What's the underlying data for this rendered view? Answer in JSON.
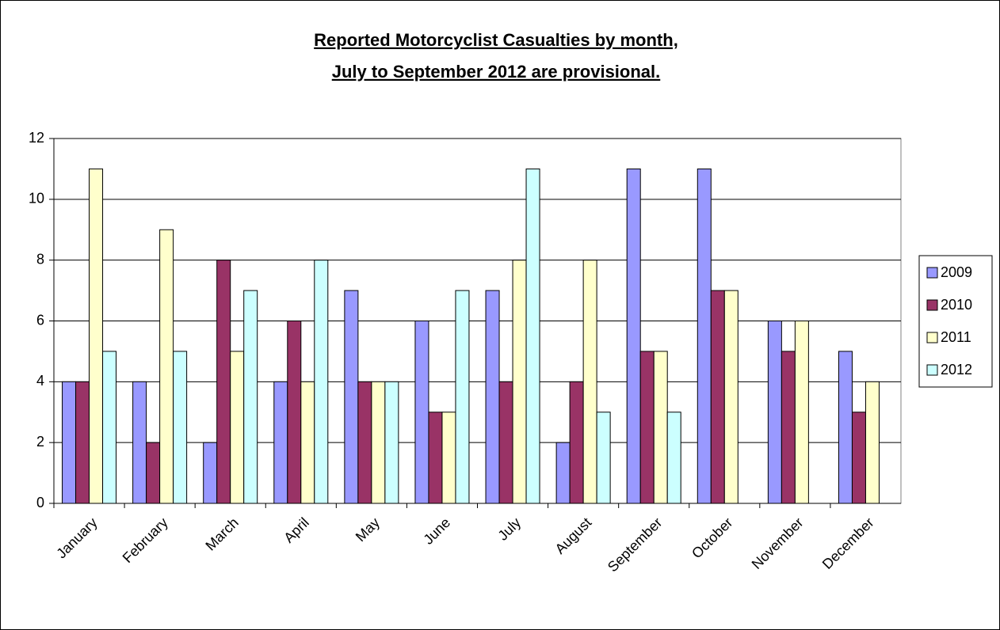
{
  "chart_data": {
    "type": "bar",
    "title": [
      "Reported Motorcyclist Casualties by month,",
      "July to September 2012 are provisional."
    ],
    "categories": [
      "January",
      "February",
      "March",
      "April",
      "May",
      "June",
      "July",
      "August",
      "September",
      "October",
      "November",
      "December"
    ],
    "series": [
      {
        "name": "2009",
        "color": "#9999ff",
        "values": [
          4,
          4,
          2,
          4,
          7,
          6,
          7,
          2,
          11,
          11,
          6,
          5
        ]
      },
      {
        "name": "2010",
        "color": "#993366",
        "values": [
          4,
          2,
          8,
          6,
          4,
          3,
          4,
          4,
          5,
          7,
          5,
          3
        ]
      },
      {
        "name": "2011",
        "color": "#ffffcc",
        "values": [
          11,
          9,
          5,
          4,
          4,
          3,
          8,
          8,
          5,
          7,
          6,
          4
        ]
      },
      {
        "name": "2012",
        "color": "#ccffff",
        "values": [
          5,
          5,
          7,
          8,
          4,
          7,
          11,
          3,
          3,
          null,
          null,
          null
        ]
      }
    ],
    "ylim": [
      0,
      12
    ],
    "yticks": [
      0,
      2,
      4,
      6,
      8,
      10,
      12
    ],
    "grid": true,
    "legend": "right"
  }
}
